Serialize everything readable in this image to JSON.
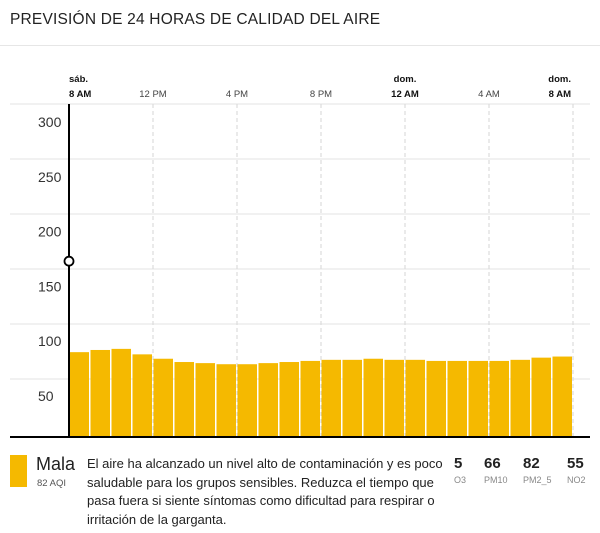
{
  "header": {
    "title": "PREVISIÓN DE 24 HORAS DE CALIDAD DEL AIRE"
  },
  "colors": {
    "bar": "#f5b900",
    "axis": "#000000",
    "grid": "#e3e3e3"
  },
  "chart_data": {
    "type": "bar",
    "ylim": [
      0,
      320
    ],
    "y_ticks": [
      50,
      100,
      150,
      200,
      250,
      300
    ],
    "time_labels": [
      {
        "day": "sáb.",
        "time": "8 AM",
        "bold": true
      },
      {
        "day": "",
        "time": "12 PM",
        "bold": false
      },
      {
        "day": "",
        "time": "4 PM",
        "bold": false
      },
      {
        "day": "",
        "time": "8 PM",
        "bold": false
      },
      {
        "day": "dom.",
        "time": "12 AM",
        "bold": true
      },
      {
        "day": "",
        "time": "4 AM",
        "bold": false
      },
      {
        "day": "dom.",
        "time": "8 AM",
        "bold": true
      }
    ],
    "values": [
      90,
      92,
      93,
      88,
      84,
      81,
      80,
      79,
      79,
      80,
      81,
      82,
      83,
      83,
      84,
      83,
      83,
      82,
      82,
      82,
      82,
      83,
      85,
      86
    ],
    "current_marker_value": 173
  },
  "status": {
    "category": "Mala",
    "aqi_label": "82 AQI",
    "description": "El aire ha alcanzado un nivel alto de contaminación y es poco saludable para los grupos sensibles. Reduzca el tiempo que pasa fuera si siente síntomas como dificultad para respirar o irritación de la garganta."
  },
  "pollutants": [
    {
      "value": "5",
      "name": "O3"
    },
    {
      "value": "66",
      "name": "PM10"
    },
    {
      "value": "82",
      "name": "PM2_5"
    },
    {
      "value": "55",
      "name": "NO2"
    }
  ]
}
